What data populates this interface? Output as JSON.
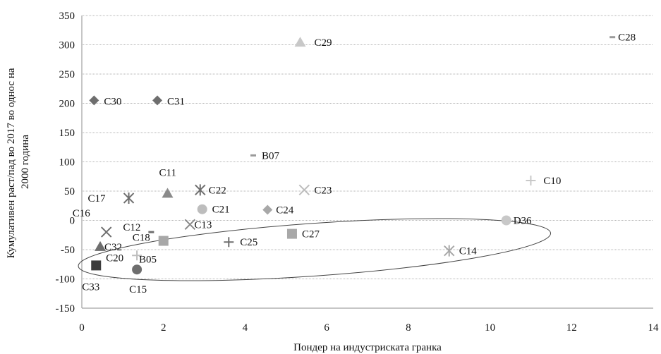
{
  "chart_data": {
    "type": "scatter",
    "xlabel": "Пондер на индустриската гранка",
    "ylabel_lines": [
      "Кумулативен раст/пад во 2017 во однос на",
      "2000 година"
    ],
    "xlim": [
      0,
      14
    ],
    "ylim": [
      -150,
      350
    ],
    "x_ticks": [
      "0",
      "2",
      "4",
      "6",
      "8",
      "10",
      "12",
      "14"
    ],
    "y_ticks": [
      "350",
      "300",
      "250",
      "200",
      "150",
      "100",
      "50",
      "0",
      "-50",
      "-100",
      "-150"
    ],
    "grid": "horizontal",
    "points": [
      {
        "label": "C28",
        "x": 13.0,
        "y": 313,
        "marker": "dash",
        "color": "#9a9a9a"
      },
      {
        "label": "C29",
        "x": 5.35,
        "y": 304,
        "marker": "triangle",
        "color": "#c8c8c8"
      },
      {
        "label": "C30",
        "x": 0.3,
        "y": 205,
        "marker": "diamond",
        "color": "#6e6e6e"
      },
      {
        "label": "C31",
        "x": 1.85,
        "y": 205,
        "marker": "diamond",
        "color": "#6e6e6e"
      },
      {
        "label": "B07",
        "x": 4.2,
        "y": 111,
        "marker": "dash",
        "color": "#9a9a9a"
      },
      {
        "label": "C10",
        "x": 11.0,
        "y": 68,
        "marker": "plus",
        "color": "#c8c8c8"
      },
      {
        "label": "C22",
        "x": 2.9,
        "y": 52,
        "marker": "asterisk",
        "color": "#6e6e6e"
      },
      {
        "label": "C23",
        "x": 5.45,
        "y": 52,
        "marker": "x",
        "color": "#bdbdbd"
      },
      {
        "label": "C11",
        "x": 2.1,
        "y": 46,
        "marker": "triangle",
        "color": "#8a8a8a"
      },
      {
        "label": "C17",
        "x": 1.15,
        "y": 38,
        "marker": "asterisk",
        "color": "#6e6e6e"
      },
      {
        "label": "C21",
        "x": 2.95,
        "y": 19,
        "marker": "circle",
        "color": "#bdbdbd"
      },
      {
        "label": "C24",
        "x": 4.55,
        "y": 18,
        "marker": "diamond",
        "color": "#a8a8a8"
      },
      {
        "label": "D36",
        "x": 10.4,
        "y": 0,
        "marker": "circle",
        "color": "#c8c8c8"
      },
      {
        "label": "C13",
        "x": 2.65,
        "y": -7,
        "marker": "x",
        "color": "#8a8a8a"
      },
      {
        "label": "C12",
        "x": 1.7,
        "y": -20,
        "marker": "dash",
        "color": "#6e6e6e"
      },
      {
        "label": "C16",
        "x": 0.6,
        "y": -20,
        "marker": "x",
        "color": "#6e6e6e"
      },
      {
        "label": "C27",
        "x": 5.15,
        "y": -23,
        "marker": "square",
        "color": "#a8a8a8"
      },
      {
        "label": "C18",
        "x": 2.0,
        "y": -35,
        "marker": "square",
        "color": "#a8a8a8"
      },
      {
        "label": "C25",
        "x": 3.6,
        "y": -37,
        "marker": "plus",
        "color": "#6e6e6e"
      },
      {
        "label": "C32",
        "x": 0.45,
        "y": -45,
        "marker": "triangle",
        "color": "#6e6e6e"
      },
      {
        "label": "C14",
        "x": 9.0,
        "y": -52,
        "marker": "asterisk",
        "color": "#a8a8a8"
      },
      {
        "label": "C20",
        "x": 1.35,
        "y": -60,
        "marker": "plus",
        "color": "#bdbdbd"
      },
      {
        "label": "B05",
        "x": 1.4,
        "y": -60,
        "marker": "none",
        "color": "#6e6e6e"
      },
      {
        "label": "C33",
        "x": 0.35,
        "y": -77,
        "marker": "square",
        "color": "#3c3c3c"
      },
      {
        "label": "C15",
        "x": 1.35,
        "y": -84,
        "marker": "circle",
        "color": "#6e6e6e"
      }
    ],
    "annotations": [
      {
        "type": "ellipse",
        "cx": 5.7,
        "cy": -50,
        "rx": 5.8,
        "ry": 45,
        "rotation_deg": -4
      }
    ]
  }
}
